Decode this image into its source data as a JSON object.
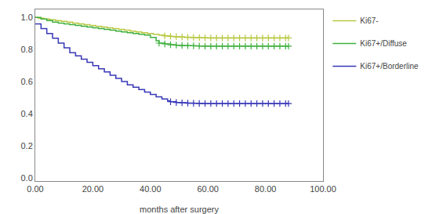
{
  "chart_data": {
    "type": "step",
    "xlabel": "months after surgery",
    "xlim": [
      0,
      100
    ],
    "ylim": [
      -0.02,
      1.05
    ],
    "xticks": [
      {
        "value": 0.0,
        "label": "0.00"
      },
      {
        "value": 20.0,
        "label": "20.00"
      },
      {
        "value": 40.0,
        "label": "40.00"
      },
      {
        "value": 60.0,
        "label": "60.00"
      },
      {
        "value": 80.0,
        "label": "80.00"
      },
      {
        "value": 100.0,
        "label": "100.00"
      }
    ],
    "yticks": [
      {
        "value": 0.0,
        "label": "0.0"
      },
      0.2,
      0.4,
      0.6,
      0.8,
      {
        "value": 1.0,
        "label": "1.0"
      }
    ],
    "grid": false,
    "legend": "right",
    "series": [
      {
        "name": "Ki67-",
        "color": "#b8c840",
        "x": [
          0,
          1,
          3,
          5,
          7,
          9,
          11,
          13,
          15,
          17,
          19,
          21,
          23,
          25,
          27,
          29,
          31,
          33,
          35,
          37,
          39,
          41,
          43,
          45,
          47,
          48,
          50,
          52,
          54,
          56,
          58,
          60,
          62,
          64,
          66,
          68,
          70,
          72,
          74,
          76,
          78,
          80,
          82,
          84,
          86,
          88
        ],
        "values": [
          1.0,
          0.995,
          0.99,
          0.985,
          0.98,
          0.975,
          0.97,
          0.965,
          0.96,
          0.955,
          0.95,
          0.945,
          0.94,
          0.935,
          0.93,
          0.925,
          0.92,
          0.915,
          0.91,
          0.905,
          0.9,
          0.895,
          0.89,
          0.885,
          0.882,
          0.88,
          0.878,
          0.876,
          0.875,
          0.874,
          0.873,
          0.872,
          0.872,
          0.872,
          0.872,
          0.872,
          0.872,
          0.872,
          0.872,
          0.872,
          0.872,
          0.872,
          0.872,
          0.872,
          0.872,
          0.872
        ],
        "censor_x": [
          45,
          47,
          49,
          51,
          53,
          55,
          57,
          59,
          61,
          63,
          65,
          67,
          69,
          71,
          73,
          75,
          77,
          79,
          81,
          83,
          85,
          87,
          88
        ],
        "censor_y": [
          0.885,
          0.882,
          0.88,
          0.878,
          0.876,
          0.875,
          0.874,
          0.873,
          0.872,
          0.872,
          0.872,
          0.872,
          0.872,
          0.872,
          0.872,
          0.872,
          0.872,
          0.872,
          0.872,
          0.872,
          0.872,
          0.872,
          0.872
        ]
      },
      {
        "name": "Ki67+/Diffuse",
        "color": "#40b040",
        "x": [
          0,
          2,
          4,
          6,
          8,
          10,
          12,
          14,
          16,
          18,
          20,
          22,
          24,
          26,
          28,
          30,
          32,
          34,
          36,
          38,
          40,
          42,
          43,
          45,
          47,
          49,
          51,
          53,
          55,
          57,
          59,
          61,
          63,
          65,
          67,
          69,
          71,
          73,
          75,
          77,
          79,
          81,
          83,
          85,
          87,
          88
        ],
        "values": [
          1.0,
          0.99,
          0.98,
          0.97,
          0.965,
          0.96,
          0.955,
          0.95,
          0.945,
          0.94,
          0.935,
          0.93,
          0.925,
          0.92,
          0.915,
          0.91,
          0.905,
          0.9,
          0.895,
          0.89,
          0.875,
          0.855,
          0.84,
          0.835,
          0.83,
          0.827,
          0.825,
          0.824,
          0.823,
          0.822,
          0.821,
          0.821,
          0.821,
          0.821,
          0.821,
          0.821,
          0.821,
          0.821,
          0.821,
          0.821,
          0.821,
          0.821,
          0.821,
          0.821,
          0.821,
          0.821
        ],
        "censor_x": [
          43,
          45,
          47,
          49,
          51,
          53,
          55,
          57,
          59,
          61,
          63,
          65,
          67,
          69,
          71,
          73,
          75,
          77,
          79,
          81,
          83,
          85,
          87,
          88
        ],
        "censor_y": [
          0.84,
          0.835,
          0.83,
          0.827,
          0.825,
          0.824,
          0.823,
          0.822,
          0.821,
          0.821,
          0.821,
          0.821,
          0.821,
          0.821,
          0.821,
          0.821,
          0.821,
          0.821,
          0.821,
          0.821,
          0.821,
          0.821,
          0.821,
          0.821
        ]
      },
      {
        "name": "Ki67+/Borderline",
        "color": "#3838b8",
        "x": [
          0,
          2,
          4,
          6,
          8,
          10,
          12,
          14,
          16,
          18,
          20,
          22,
          24,
          26,
          28,
          30,
          32,
          34,
          36,
          38,
          40,
          42,
          44,
          46,
          47,
          49,
          51,
          53,
          55,
          57,
          59,
          61,
          63,
          65,
          67,
          69,
          71,
          73,
          75,
          77,
          79,
          81,
          83,
          85,
          87,
          88
        ],
        "values": [
          0.96,
          0.93,
          0.9,
          0.87,
          0.84,
          0.81,
          0.78,
          0.76,
          0.74,
          0.72,
          0.7,
          0.68,
          0.66,
          0.64,
          0.62,
          0.6,
          0.58,
          0.565,
          0.55,
          0.535,
          0.52,
          0.505,
          0.492,
          0.48,
          0.475,
          0.47,
          0.468,
          0.466,
          0.465,
          0.464,
          0.463,
          0.463,
          0.463,
          0.463,
          0.463,
          0.463,
          0.463,
          0.463,
          0.463,
          0.463,
          0.463,
          0.463,
          0.463,
          0.463,
          0.463,
          0.463
        ],
        "censor_x": [
          47,
          49,
          51,
          53,
          55,
          57,
          59,
          61,
          63,
          65,
          67,
          69,
          71,
          73,
          75,
          77,
          79,
          81,
          83,
          85,
          87,
          88
        ],
        "censor_y": [
          0.475,
          0.47,
          0.468,
          0.466,
          0.465,
          0.464,
          0.463,
          0.463,
          0.463,
          0.463,
          0.463,
          0.463,
          0.463,
          0.463,
          0.463,
          0.463,
          0.463,
          0.463,
          0.463,
          0.463,
          0.463,
          0.463
        ]
      }
    ]
  }
}
